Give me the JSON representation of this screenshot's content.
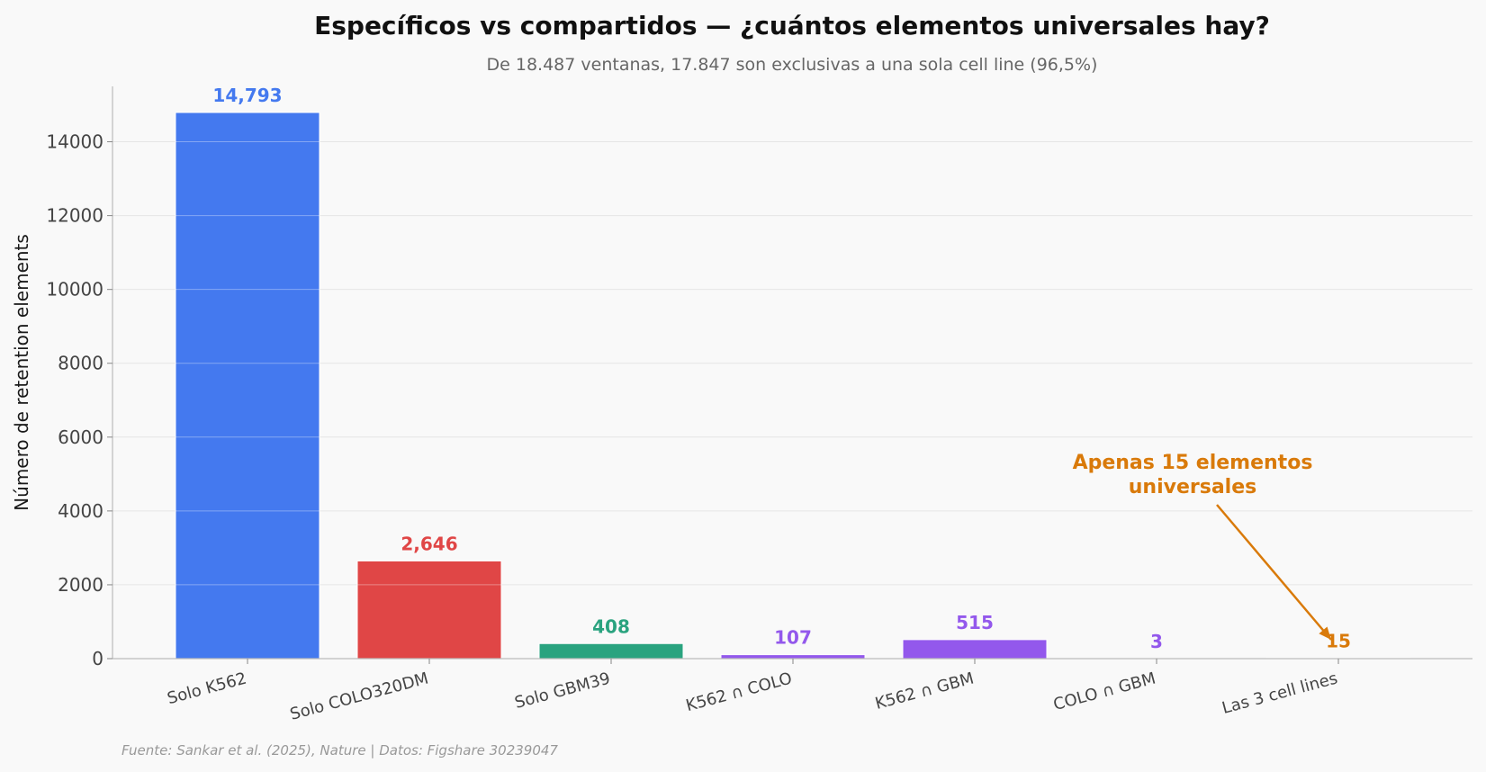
{
  "chart_data": {
    "type": "bar",
    "title": "Específicos vs compartidos — ¿cuántos elementos universales hay?",
    "subtitle": "De 18.487 ventanas, 17.847 son exclusivas a una sola cell line (96,5%)",
    "xlabel": "",
    "ylabel": "Número de retention elements",
    "ylim": [
      0,
      15500
    ],
    "yticks": [
      0,
      2000,
      4000,
      6000,
      8000,
      10000,
      12000,
      14000
    ],
    "grid": true,
    "categories": [
      "Solo K562",
      "Solo COLO320DM",
      "Solo GBM39",
      "K562 ∩ COLO",
      "K562 ∩ GBM",
      "COLO ∩ GBM",
      "Las 3 cell lines"
    ],
    "values": [
      14793,
      2646,
      408,
      107,
      515,
      3,
      15
    ],
    "value_labels": [
      "14,793",
      "2,646",
      "408",
      "107",
      "515",
      "3",
      "15"
    ],
    "colors": [
      "#4479ef",
      "#e04646",
      "#2aa37f",
      "#9358ec",
      "#9358ec",
      "#9358ec",
      "#d97a0a"
    ],
    "annotation": {
      "lines": [
        "Apenas 15 elementos",
        "universales"
      ],
      "color": "#d97a0a",
      "target_category": "Las 3 cell lines"
    },
    "source": "Fuente: Sankar et al. (2025), Nature | Datos: Figshare 30239047"
  }
}
